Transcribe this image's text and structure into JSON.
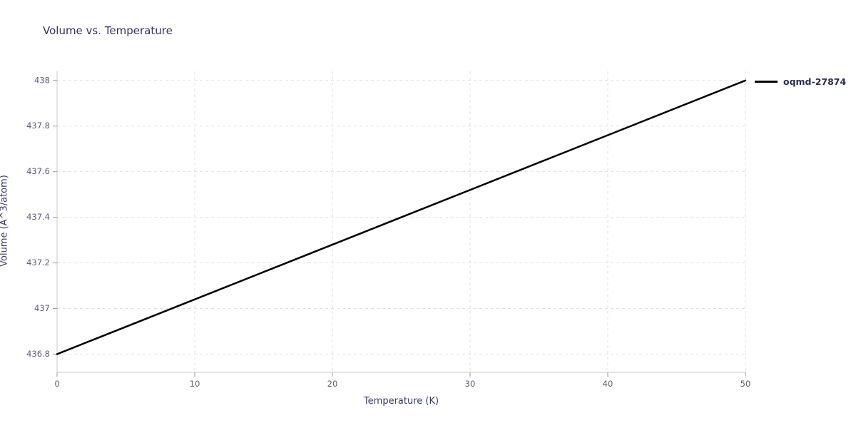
{
  "chart_data": {
    "type": "line",
    "title": "Volume vs. Temperature",
    "xlabel": "Temperature (K)",
    "ylabel": "Volume (Å^3/atom)",
    "xlim": [
      0,
      50
    ],
    "ylim": [
      436.72,
      438.04
    ],
    "xticks": [
      0,
      10,
      20,
      30,
      40,
      50
    ],
    "yticks": [
      436.8,
      437,
      437.2,
      437.4,
      437.6,
      437.8,
      438
    ],
    "grid": true,
    "legend_position": "top-right-outside",
    "series": [
      {
        "name": "oqmd-27874",
        "color": "#000000",
        "x": [
          0,
          50
        ],
        "y": [
          436.8,
          438.0
        ]
      }
    ],
    "colors": {
      "axis_line": "#c8c8c8",
      "tick_mark": "#9a9a9a",
      "grid_line": "#e0e0e0",
      "tick_label": "#5c5c7a",
      "title_text": "#32325c",
      "axis_label_text": "#3a3a66",
      "legend_text": "#2b2b50"
    }
  }
}
